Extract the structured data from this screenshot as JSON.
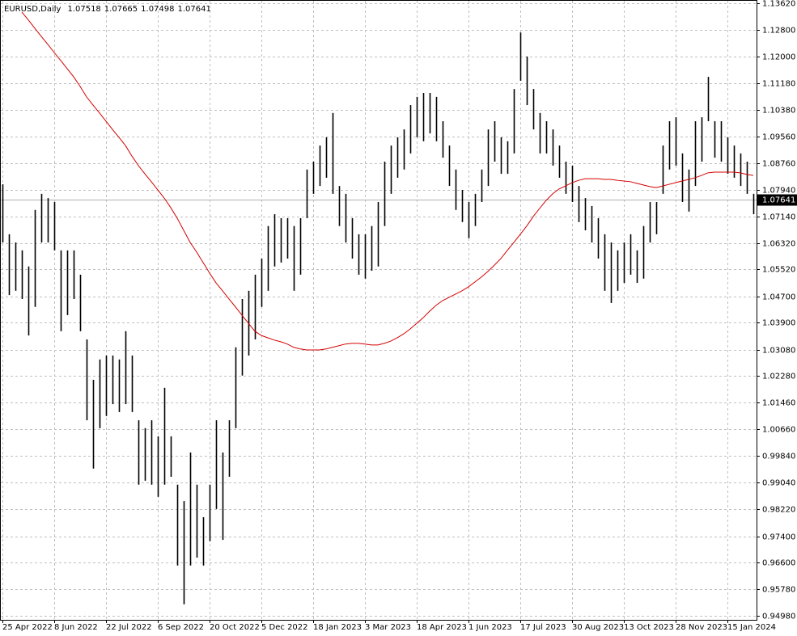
{
  "chart_data": {
    "type": "ohlc",
    "title": "EURUSD,Daily",
    "last_bar": {
      "open": 1.07518,
      "high": 1.07665,
      "low": 1.07498,
      "close": 1.07641
    },
    "categories": [
      "25 Apr 2022",
      null,
      null,
      null,
      null,
      null,
      null,
      null,
      "8 Jun 2022",
      null,
      null,
      null,
      null,
      null,
      null,
      null,
      "22 Jul 2022",
      null,
      null,
      null,
      null,
      null,
      null,
      null,
      "6 Sep 2022",
      null,
      null,
      null,
      null,
      null,
      null,
      null,
      "20 Oct 2022",
      null,
      null,
      null,
      null,
      null,
      null,
      null,
      "5 Dec 2022",
      null,
      null,
      null,
      null,
      null,
      null,
      null,
      "18 Jan 2023",
      null,
      null,
      null,
      null,
      null,
      null,
      null,
      "3 Mar 2023",
      null,
      null,
      null,
      null,
      null,
      null,
      null,
      "18 Apr 2023",
      null,
      null,
      null,
      null,
      null,
      null,
      null,
      "1 Jun 2023",
      null,
      null,
      null,
      null,
      null,
      null,
      null,
      "17 Jul 2023",
      null,
      null,
      null,
      null,
      null,
      null,
      null,
      "30 Aug 2023",
      null,
      null,
      null,
      null,
      null,
      null,
      null,
      "13 Oct 2023",
      null,
      null,
      null,
      null,
      null,
      null,
      null,
      "28 Nov 2023",
      null,
      null,
      null,
      null,
      null,
      null,
      null,
      "15 Jan 2024",
      null,
      null,
      null,
      null
    ],
    "series": [
      {
        "type": "range",
        "color": "#000000",
        "high": [
          1.0811,
          1.0659,
          1.0634,
          1.061,
          1.0561,
          1.0733,
          1.0782,
          1.0769,
          1.0757,
          1.061,
          1.061,
          1.061,
          1.0536,
          1.0339,
          1.0216,
          1.0278,
          1.029,
          1.029,
          1.0278,
          1.0364,
          1.029,
          1.0093,
          1.0069,
          1.0093,
          1.0044,
          1.0192,
          1.0044,
          0.9897,
          0.9847,
          0.9995,
          0.9897,
          0.9798,
          0.9897,
          1.0093,
          0.9995,
          1.0093,
          1.0315,
          1.0462,
          1.0487,
          1.0536,
          1.0585,
          1.0684,
          1.072,
          1.0708,
          1.0708,
          1.0684,
          1.0708,
          1.0856,
          1.088,
          1.0929,
          1.0954,
          1.1028,
          1.0806,
          1.0782,
          1.0708,
          1.0659,
          1.0659,
          1.0684,
          1.0757,
          1.088,
          1.0929,
          1.0954,
          1.0978,
          1.1052,
          1.1077,
          1.1089,
          1.1089,
          1.1077,
          1.1003,
          1.0929,
          1.0856,
          1.0794,
          1.0757,
          1.0782,
          1.0856,
          1.0978,
          1.1003,
          1.0954,
          1.0942,
          1.1101,
          1.1273,
          1.12,
          1.1101,
          1.1028,
          1.1003,
          1.0978,
          1.0929,
          1.088,
          1.0868,
          1.0806,
          1.0769,
          1.0745,
          1.0708,
          1.0659,
          1.0634,
          1.061,
          1.0634,
          1.0659,
          1.061,
          1.0684,
          1.0757,
          1.0757,
          1.0929,
          1.1003,
          1.1015,
          1.0905,
          1.0856,
          1.1003,
          1.1015,
          1.1138,
          1.1003,
          1.1003,
          1.0954,
          1.0929,
          1.0905,
          1.088,
          1.0782
        ],
        "low": [
          1.0634,
          1.0474,
          1.0487,
          1.0462,
          1.0351,
          1.0438,
          1.0634,
          1.0634,
          1.061,
          1.0364,
          1.0413,
          1.0462,
          1.0364,
          1.0093,
          0.9946,
          1.0069,
          1.0106,
          1.0142,
          1.0118,
          1.0142,
          1.0118,
          0.9897,
          0.9909,
          0.9897,
          0.986,
          0.9897,
          0.9921,
          0.9651,
          0.9533,
          0.9651,
          0.9675,
          0.9651,
          0.9725,
          0.9823,
          0.9729,
          0.9921,
          1.0069,
          1.0229,
          1.029,
          1.0339,
          1.0438,
          1.0487,
          1.0561,
          1.0573,
          1.0585,
          1.0487,
          1.0536,
          1.0708,
          1.0782,
          1.0806,
          1.0831,
          1.0782,
          1.0684,
          1.0634,
          1.0585,
          1.0536,
          1.0524,
          1.0548,
          1.0561,
          1.0684,
          1.0782,
          1.0831,
          1.0856,
          1.0905,
          1.0954,
          1.0942,
          1.0966,
          1.0942,
          1.0892,
          1.0806,
          1.0733,
          1.0696,
          1.0647,
          1.0684,
          1.0757,
          1.0806,
          1.088,
          1.0843,
          1.0843,
          1.0905,
          1.1126,
          1.1052,
          1.0978,
          1.0905,
          1.0905,
          1.0868,
          1.0831,
          1.0782,
          1.0757,
          1.0696,
          1.0671,
          1.0634,
          1.0585,
          1.0487,
          1.045,
          1.0487,
          1.0511,
          1.0536,
          1.0511,
          1.0524,
          1.0634,
          1.0659,
          1.0782,
          1.0856,
          1.0868,
          1.0757,
          1.0728,
          1.0806,
          1.088,
          1.1003,
          1.0892,
          1.088,
          1.0843,
          1.0831,
          1.0806,
          1.0782,
          1.072
        ]
      },
      {
        "type": "line",
        "color": "#d40000",
        "values": [
          null,
          null,
          null,
          1.1335,
          1.1311,
          1.1286,
          1.1261,
          1.1237,
          1.1212,
          1.1188,
          1.1163,
          1.1138,
          1.1109,
          1.1077,
          1.1052,
          1.1028,
          1.1003,
          1.0978,
          1.0954,
          1.0929,
          1.0897,
          1.0868,
          1.0843,
          1.0819,
          1.0794,
          1.0769,
          1.074,
          1.0708,
          1.0671,
          1.0634,
          1.0605,
          1.0573,
          1.0541,
          1.0511,
          1.0487,
          1.0462,
          1.0438,
          1.0413,
          1.0388,
          1.0364,
          1.0351,
          1.0344,
          1.0337,
          1.0332,
          1.0325,
          1.0315,
          1.031,
          1.0307,
          1.0307,
          1.0307,
          1.031,
          1.0315,
          1.032,
          1.0325,
          1.0327,
          1.0327,
          1.0325,
          1.0322,
          1.0322,
          1.0327,
          1.0334,
          1.0344,
          1.0356,
          1.0371,
          1.0388,
          1.0405,
          1.0425,
          1.0443,
          1.0457,
          1.0467,
          1.0477,
          1.0487,
          1.0499,
          1.0514,
          1.0529,
          1.0546,
          1.0565,
          1.0585,
          1.061,
          1.0634,
          1.0659,
          1.0684,
          1.0713,
          1.0738,
          1.0762,
          1.0782,
          1.0797,
          1.0806,
          1.0816,
          1.0823,
          1.0828,
          1.0828,
          1.0828,
          1.0826,
          1.0826,
          1.0823,
          1.0821,
          1.0819,
          1.0814,
          1.0809,
          1.0804,
          1.0801,
          1.0806,
          1.0811,
          1.0816,
          1.0821,
          1.0826,
          1.0831,
          1.0838,
          1.0846,
          1.0848,
          1.0848,
          1.0848,
          1.0848,
          1.0846,
          1.0841,
          1.0838
        ]
      }
    ],
    "ylim": [
      0.9498,
      1.1362
    ],
    "yticks": [
      {
        "value": 1.1362,
        "label": "1.13620"
      },
      {
        "value": 1.128,
        "label": "1.12800"
      },
      {
        "value": 1.12,
        "label": "1.12000"
      },
      {
        "value": 1.1118,
        "label": "1.11180"
      },
      {
        "value": 1.1038,
        "label": "1.10380"
      },
      {
        "value": 1.0956,
        "label": "1.09560"
      },
      {
        "value": 1.0876,
        "label": "1.08760"
      },
      {
        "value": 1.0794,
        "label": "1.07940"
      },
      {
        "value": 1.0714,
        "label": "1.07140"
      },
      {
        "value": 1.0632,
        "label": "1.06320"
      },
      {
        "value": 1.0552,
        "label": "1.05520"
      },
      {
        "value": 1.047,
        "label": "1.04700"
      },
      {
        "value": 1.039,
        "label": "1.03900"
      },
      {
        "value": 1.0308,
        "label": "1.03080"
      },
      {
        "value": 1.0228,
        "label": "1.02280"
      },
      {
        "value": 1.0146,
        "label": "1.01460"
      },
      {
        "value": 1.0066,
        "label": "1.00660"
      },
      {
        "value": 0.9984,
        "label": "0.99840"
      },
      {
        "value": 0.9904,
        "label": "0.99040"
      },
      {
        "value": 0.9822,
        "label": "0.98220"
      },
      {
        "value": 0.974,
        "label": "0.97400"
      },
      {
        "value": 0.966,
        "label": "0.96600"
      },
      {
        "value": 0.9578,
        "label": "0.95780"
      },
      {
        "value": 0.9498,
        "label": "0.94980"
      }
    ],
    "grid": true
  }
}
